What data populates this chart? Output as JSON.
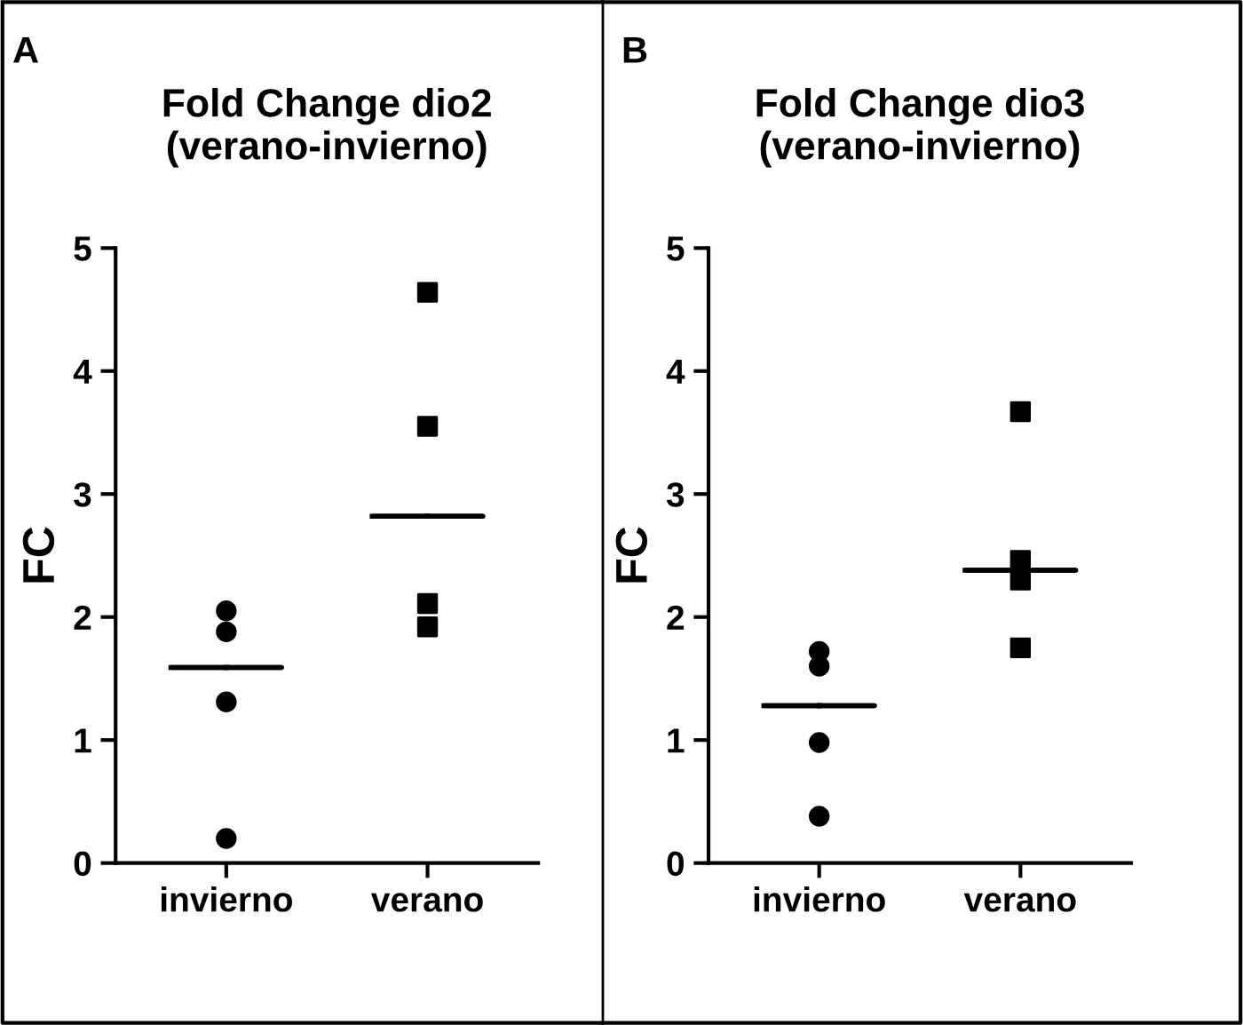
{
  "chart_data": [
    {
      "type": "scatter",
      "title": "Fold Change dio2\n(verano-invierno)",
      "ylabel": "FC",
      "categories": [
        "invierno",
        "verano"
      ],
      "ylim": [
        0,
        5
      ],
      "yticks": [
        0,
        1,
        2,
        3,
        4,
        5
      ],
      "annotations": [
        "A"
      ],
      "series": [
        {
          "marker": "circle",
          "color": "#000000",
          "x": [
            "invierno",
            "invierno",
            "invierno",
            "invierno"
          ],
          "values": [
            2.05,
            1.88,
            1.31,
            0.2
          ]
        },
        {
          "marker": "square",
          "color": "#000000",
          "x": [
            "verano",
            "verano",
            "verano",
            "verano"
          ],
          "values": [
            4.64,
            3.55,
            2.11,
            1.92
          ]
        },
        {
          "type": "box",
          "color": "#000000",
          "boxes": [
            {
              "low": 1.59,
              "q1": 1.59,
              "median": 1.59,
              "q3": 1.59,
              "high": 1.59
            },
            {
              "low": 2.82,
              "q1": 2.82,
              "median": 2.82,
              "q3": 2.82,
              "high": 2.82
            }
          ]
        }
      ]
    },
    {
      "type": "scatter",
      "title": "Fold Change dio3\n(verano-invierno)",
      "ylabel": "FC",
      "categories": [
        "invierno",
        "verano"
      ],
      "ylim": [
        0,
        5
      ],
      "yticks": [
        0,
        1,
        2,
        3,
        4,
        5
      ],
      "annotations": [
        "B"
      ],
      "series": [
        {
          "marker": "circle",
          "color": "#000000",
          "x": [
            "invierno",
            "invierno",
            "invierno",
            "invierno"
          ],
          "values": [
            1.72,
            1.6,
            0.98,
            0.38
          ]
        },
        {
          "marker": "square",
          "color": "#000000",
          "x": [
            "verano",
            "verano",
            "verano",
            "verano"
          ],
          "values": [
            3.67,
            2.46,
            2.3,
            1.75
          ]
        },
        {
          "type": "box",
          "color": "#000000",
          "boxes": [
            {
              "low": 1.28,
              "q1": 1.28,
              "median": 1.28,
              "q3": 1.28,
              "high": 1.28
            },
            {
              "low": 2.38,
              "q1": 2.38,
              "median": 2.38,
              "q3": 2.38,
              "high": 2.38
            }
          ]
        }
      ]
    }
  ]
}
